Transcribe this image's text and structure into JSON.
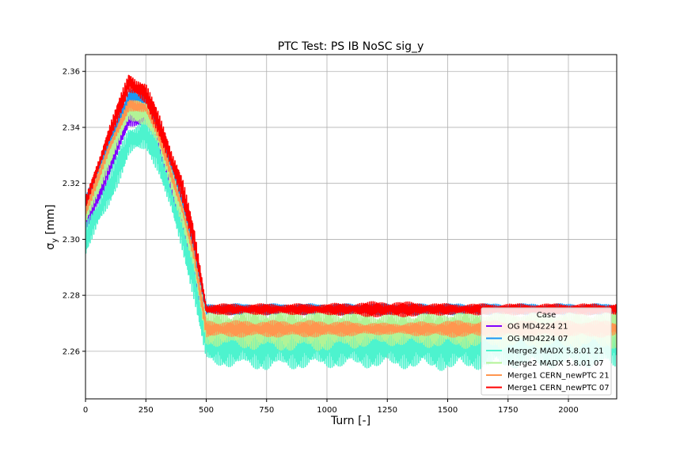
{
  "chart_data": {
    "type": "line",
    "title": "PTC Test: PS IB NoSC sig_y",
    "xlabel": "Turn [-]",
    "ylabel_main": "σ",
    "ylabel_sub": "y",
    "ylabel_unit": " [mm]",
    "xlim": [
      0,
      2200
    ],
    "ylim": [
      2.243,
      2.366
    ],
    "x_ticks": [
      0,
      250,
      500,
      750,
      1000,
      1250,
      1500,
      1750,
      2000
    ],
    "y_ticks": [
      2.26,
      2.28,
      2.3,
      2.32,
      2.34,
      2.36
    ],
    "y_tick_labels": [
      "2.26",
      "2.28",
      "2.30",
      "2.32",
      "2.34",
      "2.36"
    ],
    "grid": true,
    "legend": {
      "title": "Case",
      "position": "lower-right"
    },
    "series": [
      {
        "name": "OG MD4224 21",
        "color": "#8000ff",
        "x": [
          0,
          100,
          180,
          250,
          300,
          400,
          450,
          500,
          750,
          1000,
          1250,
          1500,
          1750,
          2000,
          2200
        ],
        "y": [
          2.305,
          2.326,
          2.343,
          2.345,
          2.335,
          2.305,
          2.288,
          2.266,
          2.266,
          2.266,
          2.266,
          2.266,
          2.266,
          2.266,
          2.266
        ],
        "band": [
          0.004,
          0.004,
          0.003,
          0.004,
          0.004,
          0.004,
          0.004,
          0.003,
          0.003,
          0.003,
          0.003,
          0.003,
          0.003,
          0.003,
          0.003
        ]
      },
      {
        "name": "OG MD4224 07",
        "color": "#1996f3",
        "x": [
          0,
          100,
          180,
          250,
          300,
          400,
          450,
          500,
          750,
          1000,
          1250,
          1500,
          1750,
          2000,
          2200
        ],
        "y": [
          2.312,
          2.335,
          2.35,
          2.35,
          2.34,
          2.313,
          2.295,
          2.275,
          2.275,
          2.275,
          2.275,
          2.275,
          2.275,
          2.275,
          2.275
        ],
        "band": [
          0.003,
          0.003,
          0.004,
          0.005,
          0.004,
          0.004,
          0.004,
          0.002,
          0.002,
          0.002,
          0.002,
          0.002,
          0.002,
          0.002,
          0.002
        ]
      },
      {
        "name": "Merge2 MADX 5.8.01 21",
        "color": "#4df3ce",
        "x": [
          0,
          100,
          180,
          250,
          300,
          400,
          450,
          500,
          750,
          1000,
          1250,
          1500,
          1750,
          2000,
          2200
        ],
        "y": [
          2.3,
          2.318,
          2.335,
          2.338,
          2.33,
          2.302,
          2.285,
          2.262,
          2.262,
          2.262,
          2.262,
          2.262,
          2.262,
          2.262,
          2.262
        ],
        "band": [
          0.006,
          0.006,
          0.006,
          0.006,
          0.006,
          0.006,
          0.007,
          0.007,
          0.009,
          0.008,
          0.008,
          0.009,
          0.008,
          0.008,
          0.008
        ]
      },
      {
        "name": "Merge2 MADX 5.8.01 07",
        "color": "#b2f396",
        "x": [
          0,
          100,
          180,
          250,
          300,
          400,
          450,
          500,
          750,
          1000,
          1250,
          1500,
          1750,
          2000,
          2200
        ],
        "y": [
          2.308,
          2.33,
          2.346,
          2.345,
          2.337,
          2.309,
          2.292,
          2.268,
          2.268,
          2.268,
          2.268,
          2.268,
          2.268,
          2.268,
          2.268
        ],
        "band": [
          0.004,
          0.004,
          0.004,
          0.004,
          0.004,
          0.004,
          0.004,
          0.006,
          0.008,
          0.008,
          0.006,
          0.007,
          0.007,
          0.007,
          0.007
        ]
      },
      {
        "name": "Merge1 CERN_newPTC 21",
        "color": "#ff964f",
        "x": [
          0,
          100,
          180,
          250,
          300,
          400,
          450,
          500,
          750,
          1000,
          1250,
          1500,
          1750,
          2000,
          2200
        ],
        "y": [
          2.31,
          2.333,
          2.348,
          2.347,
          2.338,
          2.311,
          2.294,
          2.268,
          2.268,
          2.268,
          2.268,
          2.268,
          2.268,
          2.268,
          2.268
        ],
        "band": [
          0.002,
          0.002,
          0.002,
          0.002,
          0.002,
          0.002,
          0.002,
          0.003,
          0.003,
          0.003,
          0.002,
          0.003,
          0.003,
          0.003,
          0.003
        ]
      },
      {
        "name": "Merge1 CERN_newPTC 07",
        "color": "#ff0000",
        "x": [
          0,
          100,
          180,
          250,
          300,
          400,
          450,
          500,
          750,
          1000,
          1250,
          1500,
          1750,
          2000,
          2200
        ],
        "y": [
          2.313,
          2.338,
          2.356,
          2.352,
          2.342,
          2.318,
          2.3,
          2.275,
          2.275,
          2.275,
          2.275,
          2.275,
          2.275,
          2.275,
          2.275
        ],
        "band": [
          0.002,
          0.003,
          0.004,
          0.004,
          0.004,
          0.005,
          0.004,
          0.002,
          0.002,
          0.002,
          0.003,
          0.002,
          0.002,
          0.002,
          0.002
        ]
      }
    ]
  }
}
